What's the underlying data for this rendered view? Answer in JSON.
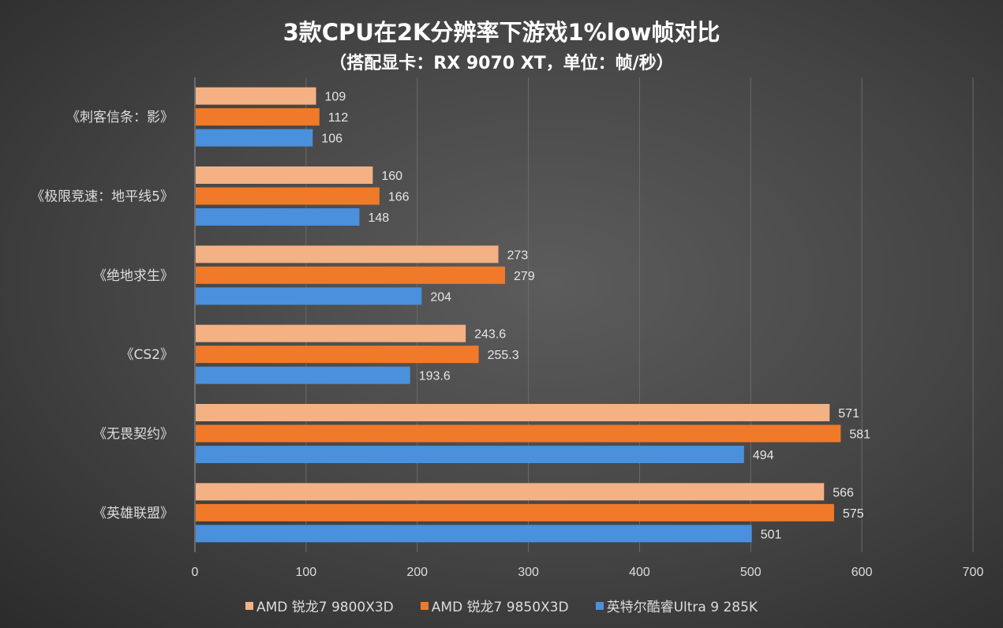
{
  "chart_data": {
    "type": "bar",
    "orientation": "horizontal",
    "title": "3款CPU在2K分辨率下游戏1%low帧对比",
    "subtitle": "（搭配显卡：RX 9070 XT，单位：帧/秒）",
    "categories": [
      "《刺客信条：影》",
      "《极限竞速：地平线5》",
      "《绝地求生》",
      "《CS2》",
      "《无畏契约》",
      "《英雄联盟》"
    ],
    "series": [
      {
        "name": "AMD 锐龙7 9800X3D",
        "color": "#f4b183",
        "values": [
          109,
          160,
          273,
          243.6,
          571,
          566
        ],
        "labels": [
          "109",
          "160",
          "273",
          "243.6",
          "571",
          "566"
        ]
      },
      {
        "name": "AMD 锐龙7 9850X3D",
        "color": "#f07a2a",
        "values": [
          112,
          166,
          279,
          255.3,
          581,
          575
        ],
        "labels": [
          "112",
          "166",
          "279",
          "255.3",
          "581",
          "575"
        ]
      },
      {
        "name": "英特尔酷睿Ultra 9 285K",
        "color": "#4a90dc",
        "values": [
          106,
          148,
          204,
          193.6,
          494,
          501
        ],
        "labels": [
          "106",
          "148",
          "204",
          "193.6",
          "494",
          "501"
        ]
      }
    ],
    "xlim": [
      0,
      700
    ],
    "xticks": [
      "0",
      "100",
      "200",
      "300",
      "400",
      "500",
      "600",
      "700"
    ],
    "grid": true,
    "legend_position": "bottom"
  }
}
